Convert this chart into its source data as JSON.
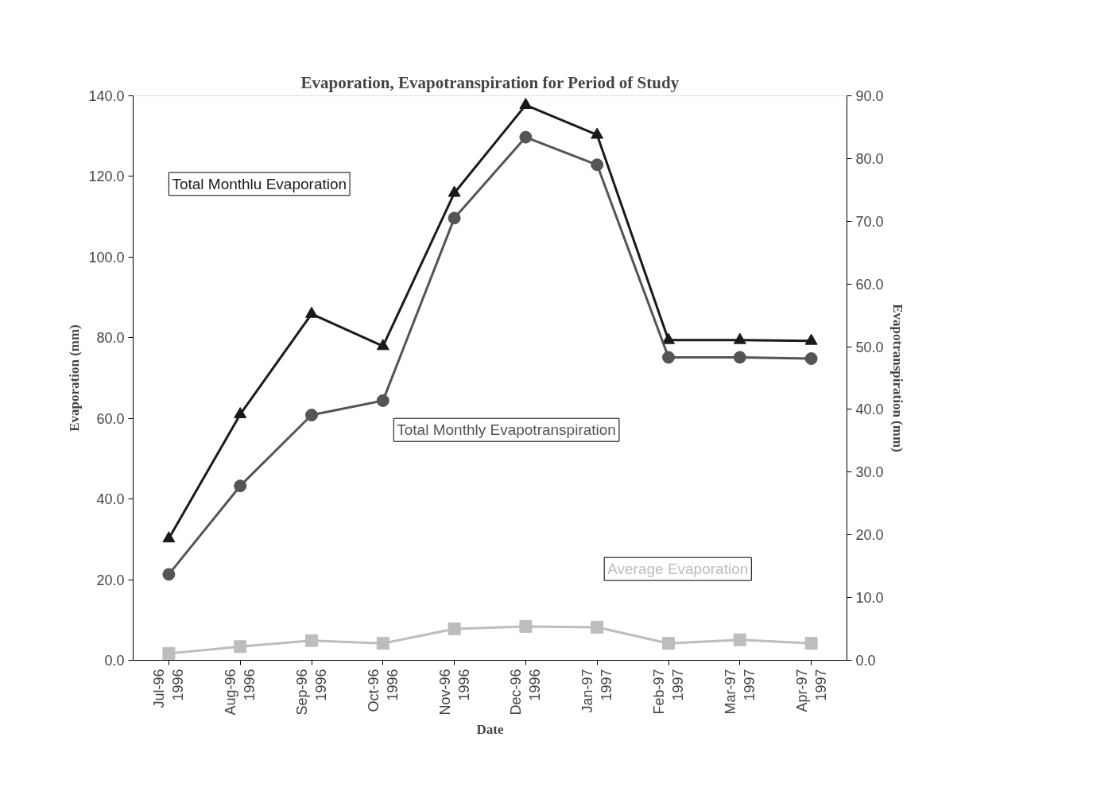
{
  "chart_data": {
    "type": "line",
    "title": "Evaporation, Evapotranspiration for Period of Study",
    "xlabel": "Date",
    "ylabel": "Evaporation (mm)",
    "y2label": "Evapotranspiration (mm)",
    "categories": [
      "Jul-96\n1996",
      "Aug-96\n1996",
      "Sep-96\n1996",
      "Oct-96\n1996",
      "Nov-96\n1996",
      "Dec-96\n1996",
      "Jan-97\n1997",
      "Feb-97\n1997",
      "Mar-97\n1997",
      "Apr-97\n1997"
    ],
    "series": [
      {
        "name": "Total Monthlu Evaporation",
        "color": "#1a1a1a",
        "marker": "triangle",
        "values": [
          30.2,
          61.0,
          85.9,
          77.9,
          115.9,
          137.7,
          130.3,
          79.4,
          79.4,
          79.2
        ]
      },
      {
        "name": "Total Monthly Evapotranspiration",
        "color": "#555555",
        "marker": "circle",
        "axis": "y2",
        "values": [
          13.7,
          27.8,
          39.1,
          41.4,
          70.5,
          83.4,
          79.0,
          48.3,
          48.3,
          48.1
        ]
      },
      {
        "name": "Average Evaporation",
        "color": "#bdbdbd",
        "marker": "square",
        "values": [
          1.7,
          3.4,
          4.9,
          4.2,
          7.8,
          8.4,
          8.2,
          4.2,
          5.1,
          4.2
        ]
      }
    ],
    "ylim": [
      0,
      140
    ],
    "yticks": [
      {
        "value": 0,
        "label": "0.0"
      },
      {
        "value": 20,
        "label": "20.0"
      },
      {
        "value": 40,
        "label": "40.0"
      },
      {
        "value": 60,
        "label": "60.0"
      },
      {
        "value": 80,
        "label": "80.0"
      },
      {
        "value": 100,
        "label": "100.0"
      },
      {
        "value": 120,
        "label": "120.0"
      },
      {
        "value": 140,
        "label": "140.0"
      }
    ],
    "y2lim": [
      0,
      90
    ],
    "y2ticks": [
      {
        "value": 0,
        "label": "0.0"
      },
      {
        "value": 10,
        "label": "10.0"
      },
      {
        "value": 20,
        "label": "20.0"
      },
      {
        "value": 30,
        "label": "30.0"
      },
      {
        "value": 40,
        "label": "40.0"
      },
      {
        "value": 50,
        "label": "50.0"
      },
      {
        "value": 60,
        "label": "60.0"
      },
      {
        "value": 70,
        "label": "70.0"
      },
      {
        "value": 80,
        "label": "80.0"
      },
      {
        "value": 90,
        "label": "90.0"
      }
    ],
    "grid": false
  }
}
